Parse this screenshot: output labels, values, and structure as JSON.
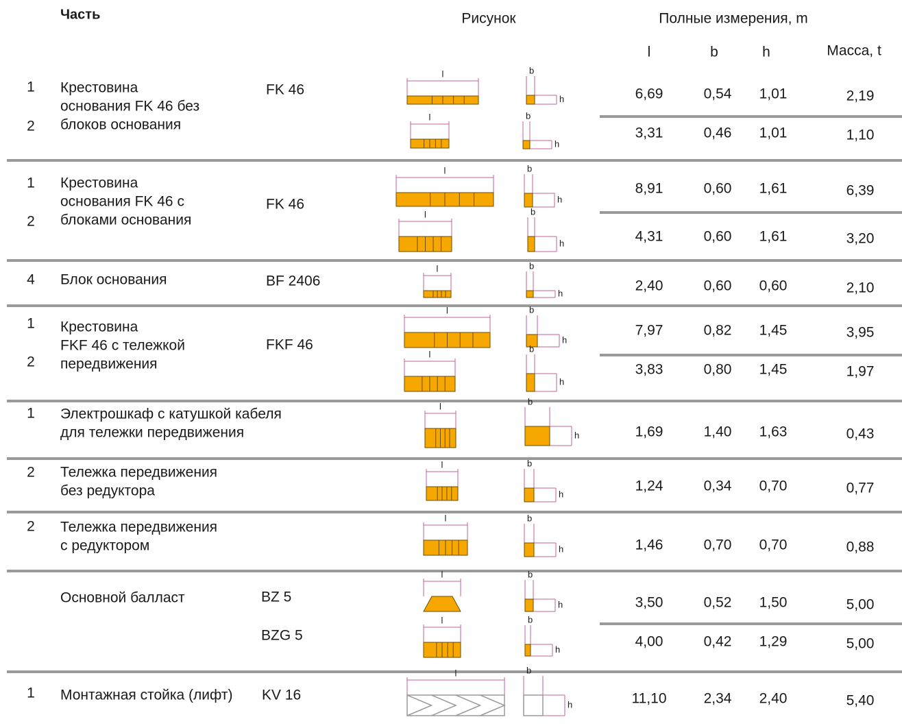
{
  "header": {
    "part": "Часть",
    "drawing": "Рисунок",
    "dimensions": "Полные измерения, m",
    "l": "l",
    "b": "b",
    "h": "h",
    "mass": "Масса, t"
  },
  "drawing_labels": {
    "l": "l",
    "b": "b",
    "h": "h"
  },
  "groups": [
    {
      "name": [
        "Крестовина",
        "основания FK 46 без",
        "блоков основания"
      ],
      "code": "FK 46",
      "rows": [
        {
          "qty": "1",
          "l": "6,69",
          "b": "0,54",
          "h": "1,01",
          "mass": "2,19"
        },
        {
          "qty": "2",
          "l": "3,31",
          "b": "0,46",
          "h": "1,01",
          "mass": "1,10"
        }
      ]
    },
    {
      "name": [
        "Крестовина",
        "основания FK 46 с",
        "блоками основания"
      ],
      "code": "FK 46",
      "rows": [
        {
          "qty": "1",
          "l": "8,91",
          "b": "0,60",
          "h": "1,61",
          "mass": "6,39"
        },
        {
          "qty": "2",
          "l": "4,31",
          "b": "0,60",
          "h": "1,61",
          "mass": "3,20"
        }
      ]
    },
    {
      "name": [
        "Блок основания"
      ],
      "code": "BF 2406",
      "rows": [
        {
          "qty": "4",
          "l": "2,40",
          "b": "0,60",
          "h": "0,60",
          "mass": "2,10"
        }
      ]
    },
    {
      "name": [
        "Крестовина",
        "FKF 46 с тележкой",
        "передвижения"
      ],
      "code": "FKF 46",
      "rows": [
        {
          "qty": "1",
          "l": "7,97",
          "b": "0,82",
          "h": "1,45",
          "mass": "3,95"
        },
        {
          "qty": "2",
          "l": "3,83",
          "b": "0,80",
          "h": "1,45",
          "mass": "1,97"
        }
      ]
    },
    {
      "name": [
        "Электрошкаф с катушкой кабеля",
        "для тележки передвижения"
      ],
      "rows": [
        {
          "qty": "1",
          "l": "1,69",
          "b": "1,40",
          "h": "1,63",
          "mass": "0,43"
        }
      ]
    },
    {
      "name": [
        "Тележка передвижения",
        "без редуктора"
      ],
      "rows": [
        {
          "qty": "2",
          "l": "1,24",
          "b": "0,34",
          "h": "0,70",
          "mass": "0,77"
        }
      ]
    },
    {
      "name": [
        "Тележка передвижения",
        "с редуктором"
      ],
      "rows": [
        {
          "qty": "2",
          "l": "1,46",
          "b": "0,70",
          "h": "0,70",
          "mass": "0,88"
        }
      ]
    },
    {
      "name": [
        "Основной балласт"
      ],
      "rows": [
        {
          "code": "BZ 5",
          "l": "3,50",
          "b": "0,52",
          "h": "1,50",
          "mass": "5,00"
        },
        {
          "code": "BZG 5",
          "l": "4,00",
          "b": "0,42",
          "h": "1,29",
          "mass": "5,00"
        }
      ]
    },
    {
      "name": [
        "Монтажная стойка (лифт)"
      ],
      "code": "KV 16",
      "rows": [
        {
          "qty": "1",
          "l": "11,10",
          "b": "2,34",
          "h": "2,40",
          "mass": "5,40"
        }
      ]
    }
  ]
}
